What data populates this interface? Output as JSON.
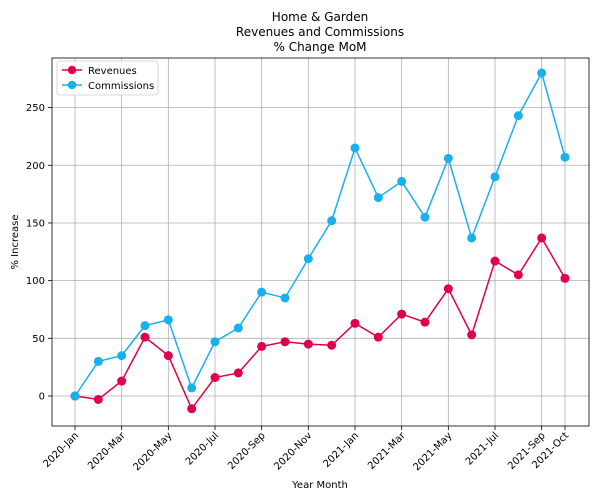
{
  "chart_data": {
    "type": "line",
    "title_lines": [
      "Home & Garden",
      "Revenues and Commissions",
      "% Change MoM"
    ],
    "xlabel": "Year Month",
    "ylabel": "% Increase",
    "x": [
      "2020-01",
      "2020-02",
      "2020-03",
      "2020-04",
      "2020-05",
      "2020-06",
      "2020-07",
      "2020-08",
      "2020-09",
      "2020-10",
      "2020-11",
      "2020-12",
      "2021-01",
      "2021-02",
      "2021-03",
      "2021-04",
      "2021-05",
      "2021-06",
      "2021-07",
      "2021-08",
      "2021-09",
      "2021-10"
    ],
    "x_ticks": [
      {
        "x": "2020-01",
        "label": "2020-Jan"
      },
      {
        "x": "2020-03",
        "label": "2020-Mar"
      },
      {
        "x": "2020-05",
        "label": "2020-May"
      },
      {
        "x": "2020-07",
        "label": "2020-Jul"
      },
      {
        "x": "2020-09",
        "label": "2020-Sep"
      },
      {
        "x": "2020-11",
        "label": "2020-Nov"
      },
      {
        "x": "2021-01",
        "label": "2021-Jan"
      },
      {
        "x": "2021-03",
        "label": "2021-Mar"
      },
      {
        "x": "2021-05",
        "label": "2021-May"
      },
      {
        "x": "2021-07",
        "label": "2021-Jul"
      },
      {
        "x": "2021-09",
        "label": "2021-Sep"
      },
      {
        "x": "2021-10",
        "label": "2021-Oct"
      }
    ],
    "y_ticks": [
      0,
      50,
      100,
      150,
      200,
      250
    ],
    "ylim": [
      -26,
      293
    ],
    "grid": true,
    "legend_position": "top-left",
    "series": [
      {
        "name": "Revenues",
        "color": "#e0004d",
        "values": [
          0,
          -3,
          13,
          51,
          35,
          -11,
          16,
          20,
          43,
          47,
          45,
          44,
          63,
          51,
          71,
          64,
          93,
          53,
          117,
          105,
          137,
          102
        ]
      },
      {
        "name": "Commissions",
        "color": "#1ab0ec",
        "values": [
          0,
          30,
          35,
          61,
          66,
          7,
          47,
          59,
          90,
          85,
          119,
          152,
          215,
          172,
          186,
          155,
          206,
          137,
          190,
          243,
          280,
          207
        ]
      }
    ]
  }
}
